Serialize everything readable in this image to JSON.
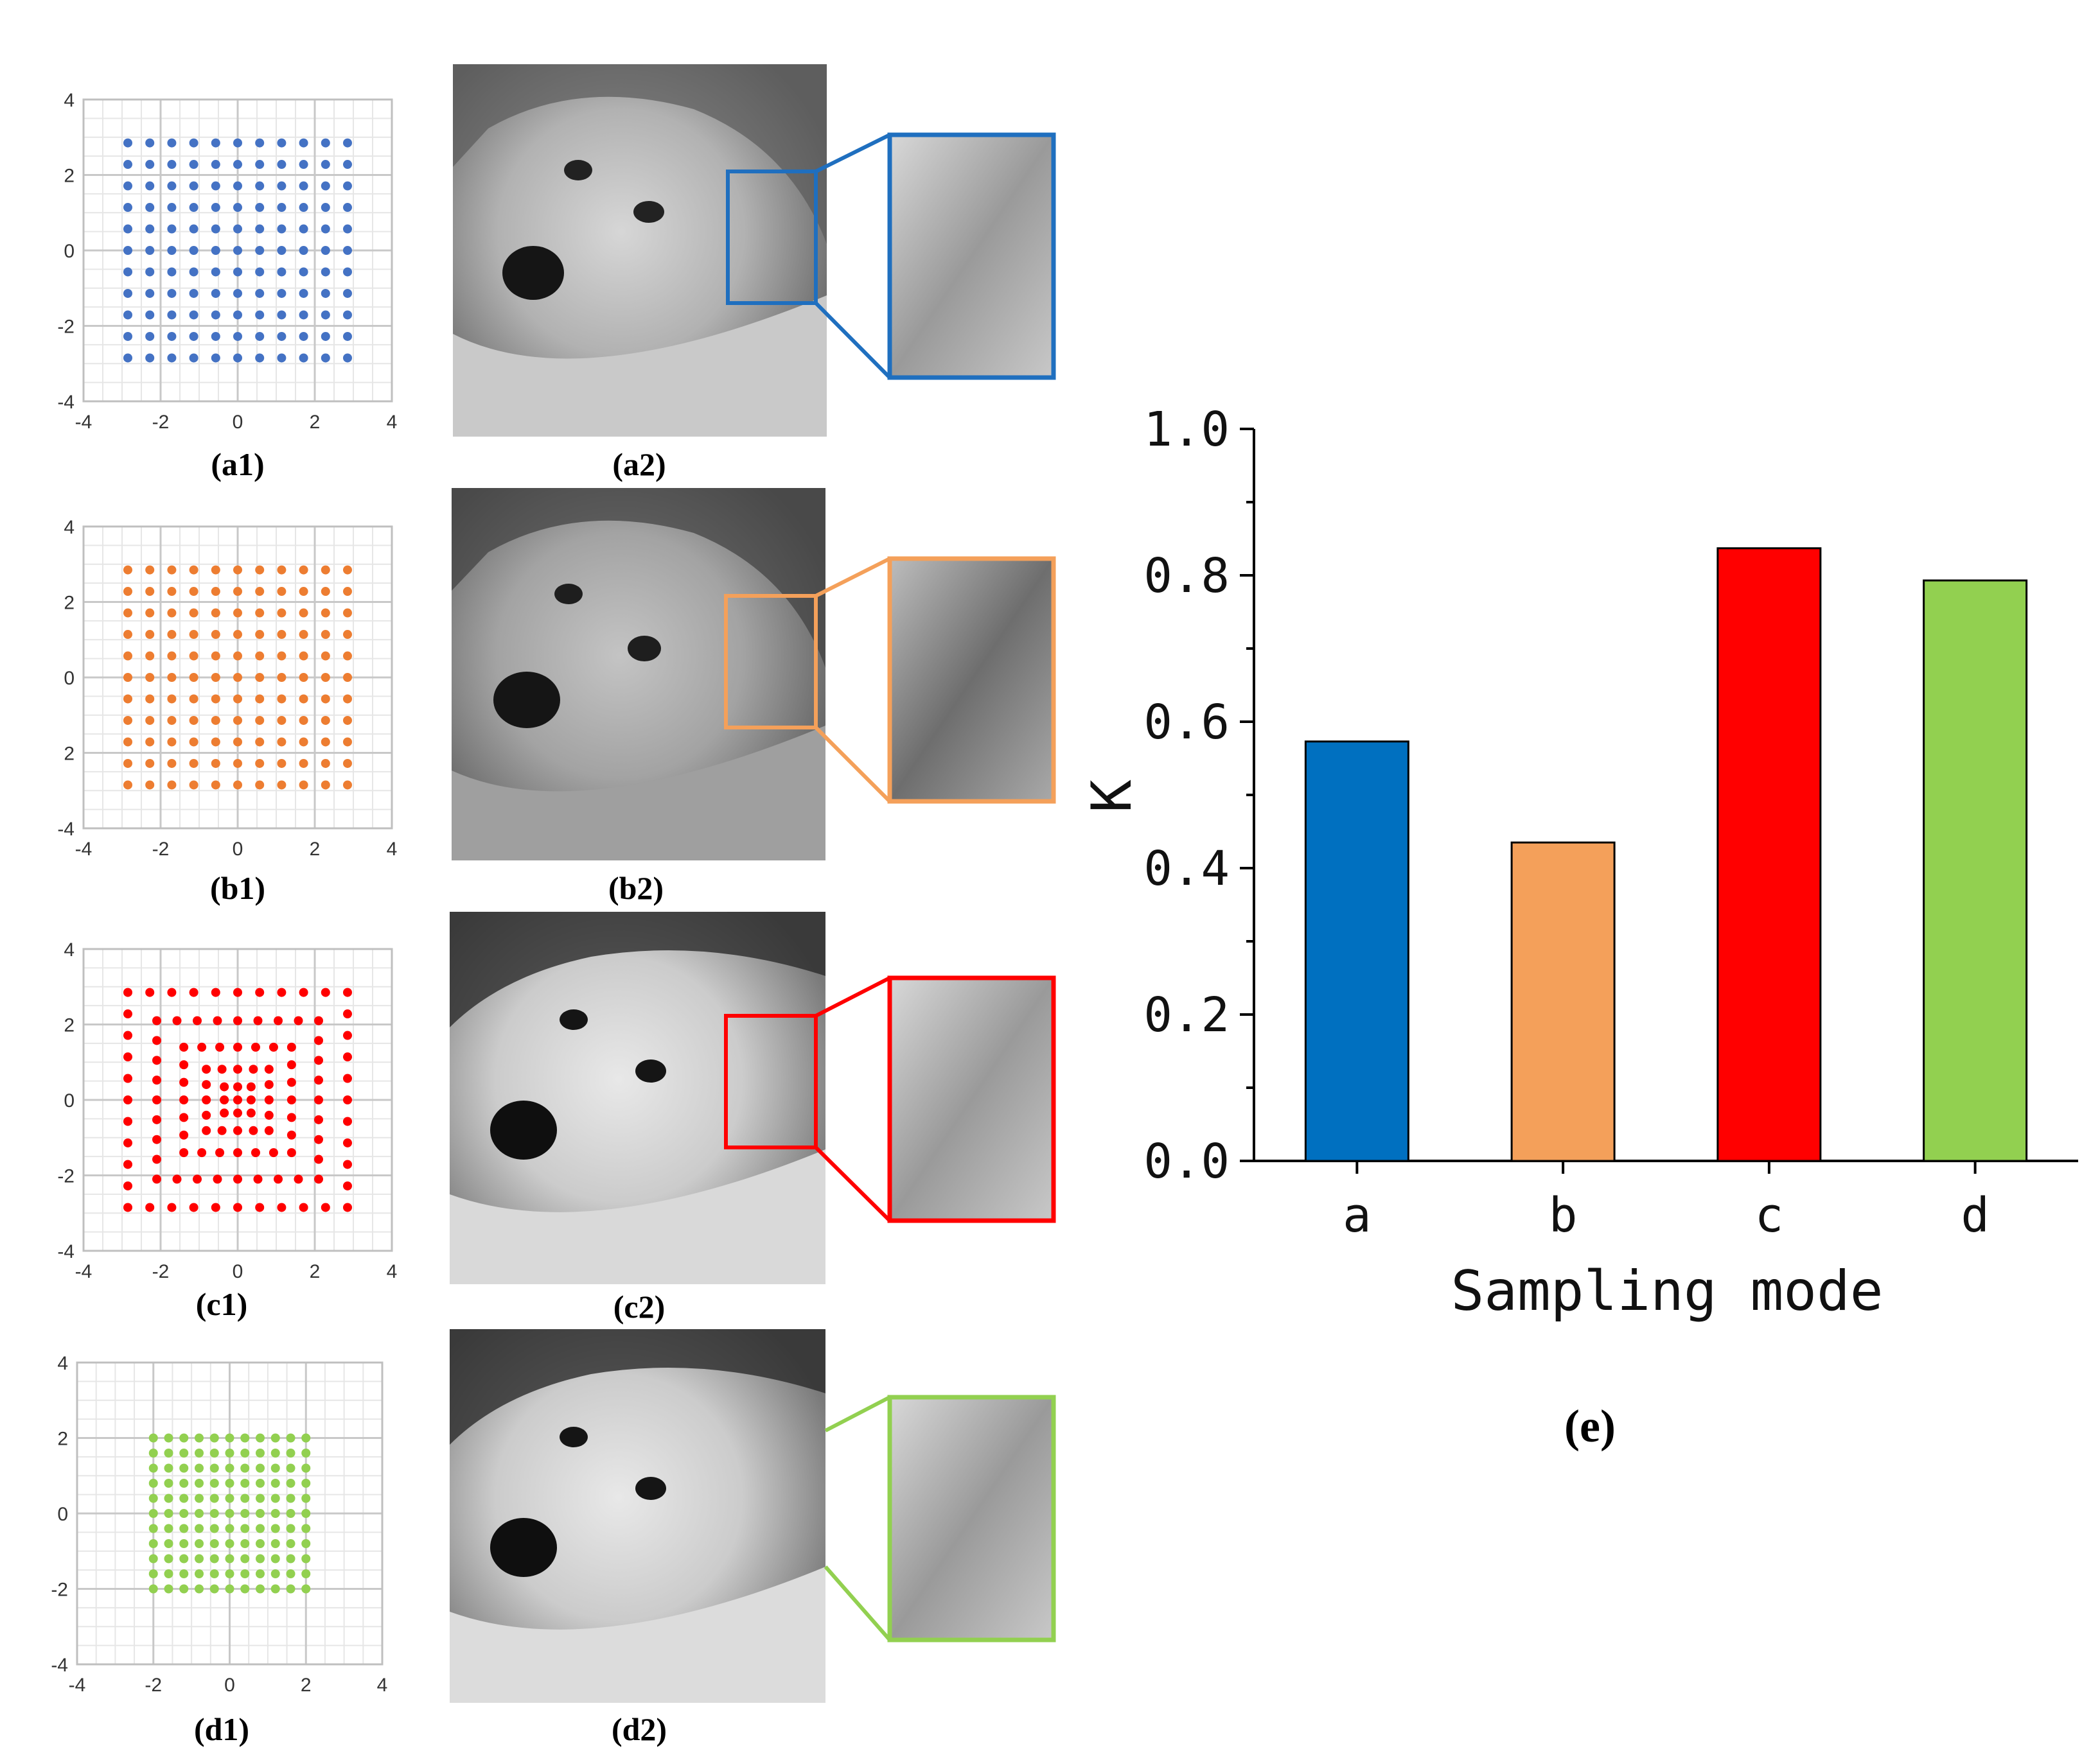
{
  "panels": [
    {
      "id": "a",
      "caption_scatter": "(a1)",
      "caption_image": "(a2)",
      "color": "#4472c4",
      "pattern": "uniform",
      "extent": 2.85,
      "n": 11
    },
    {
      "id": "b",
      "caption_scatter": "(b1)",
      "caption_image": "(b2)",
      "color": "#ed7d31",
      "pattern": "uniform",
      "extent": 2.85,
      "n": 11
    },
    {
      "id": "c",
      "caption_scatter": "(c1)",
      "caption_image": "(c2)",
      "color": "#ff0000",
      "pattern": "dense-center",
      "extent": 2.85,
      "n": 11
    },
    {
      "id": "d",
      "caption_scatter": "(d1)",
      "caption_image": "(d2)",
      "color": "#92d050",
      "pattern": "uniform",
      "extent": 2.0,
      "n": 11
    }
  ],
  "scatter_axes": {
    "xlim": [
      -4,
      4
    ],
    "ylim": [
      -4,
      4
    ],
    "x_ticks": [
      "-4",
      "-2",
      "0",
      "2",
      "4"
    ],
    "y_ticks": [
      "4",
      "2",
      "0",
      "-2",
      "-4"
    ],
    "y_ticks_b": [
      "4",
      "2",
      "0",
      "2",
      "-4"
    ],
    "x_ticks_b": [
      "-4",
      "-2",
      "0",
      "2",
      "4"
    ]
  },
  "chart_data": {
    "type": "bar",
    "categories": [
      "a",
      "b",
      "c",
      "d"
    ],
    "values": [
      0.573,
      0.435,
      0.837,
      0.793
    ],
    "colors": [
      "#0070c0",
      "#f4a05a",
      "#ff0000",
      "#92d050"
    ],
    "title": "",
    "xlabel": "Sampling mode",
    "ylabel": "K",
    "ylim": [
      0.0,
      1.0
    ],
    "y_ticks": [
      "0.0",
      "0.2",
      "0.4",
      "0.6",
      "0.8",
      "1.0"
    ],
    "caption": "(e)"
  },
  "zoom_box_colors": [
    "#1f6fbf",
    "#f4a05a",
    "#ff0000",
    "#92d050"
  ]
}
